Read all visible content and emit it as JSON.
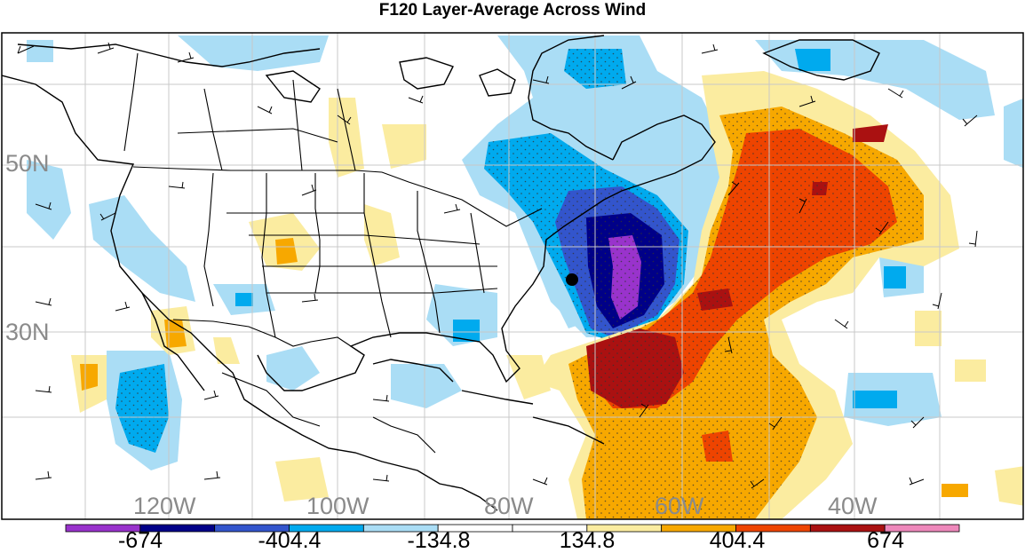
{
  "title": "F120 Layer-Average Across Wind",
  "map": {
    "lat_labels": [
      "50N",
      "30N"
    ],
    "lon_labels": [
      "120W",
      "100W",
      "80W",
      "60W",
      "40W"
    ],
    "marker": "black-dot"
  },
  "colorbar": {
    "labels": [
      "-674",
      "-404.4",
      "-134.8",
      "134.8",
      "404.4",
      "674"
    ],
    "colors": [
      "#9933cc",
      "#000088",
      "#3355cc",
      "#00aaee",
      "#aaddf5",
      "#ffffff",
      "#ffffff",
      "#fbeca0",
      "#f7a800",
      "#ee4400",
      "#aa1111",
      "#ee88bb"
    ]
  }
}
